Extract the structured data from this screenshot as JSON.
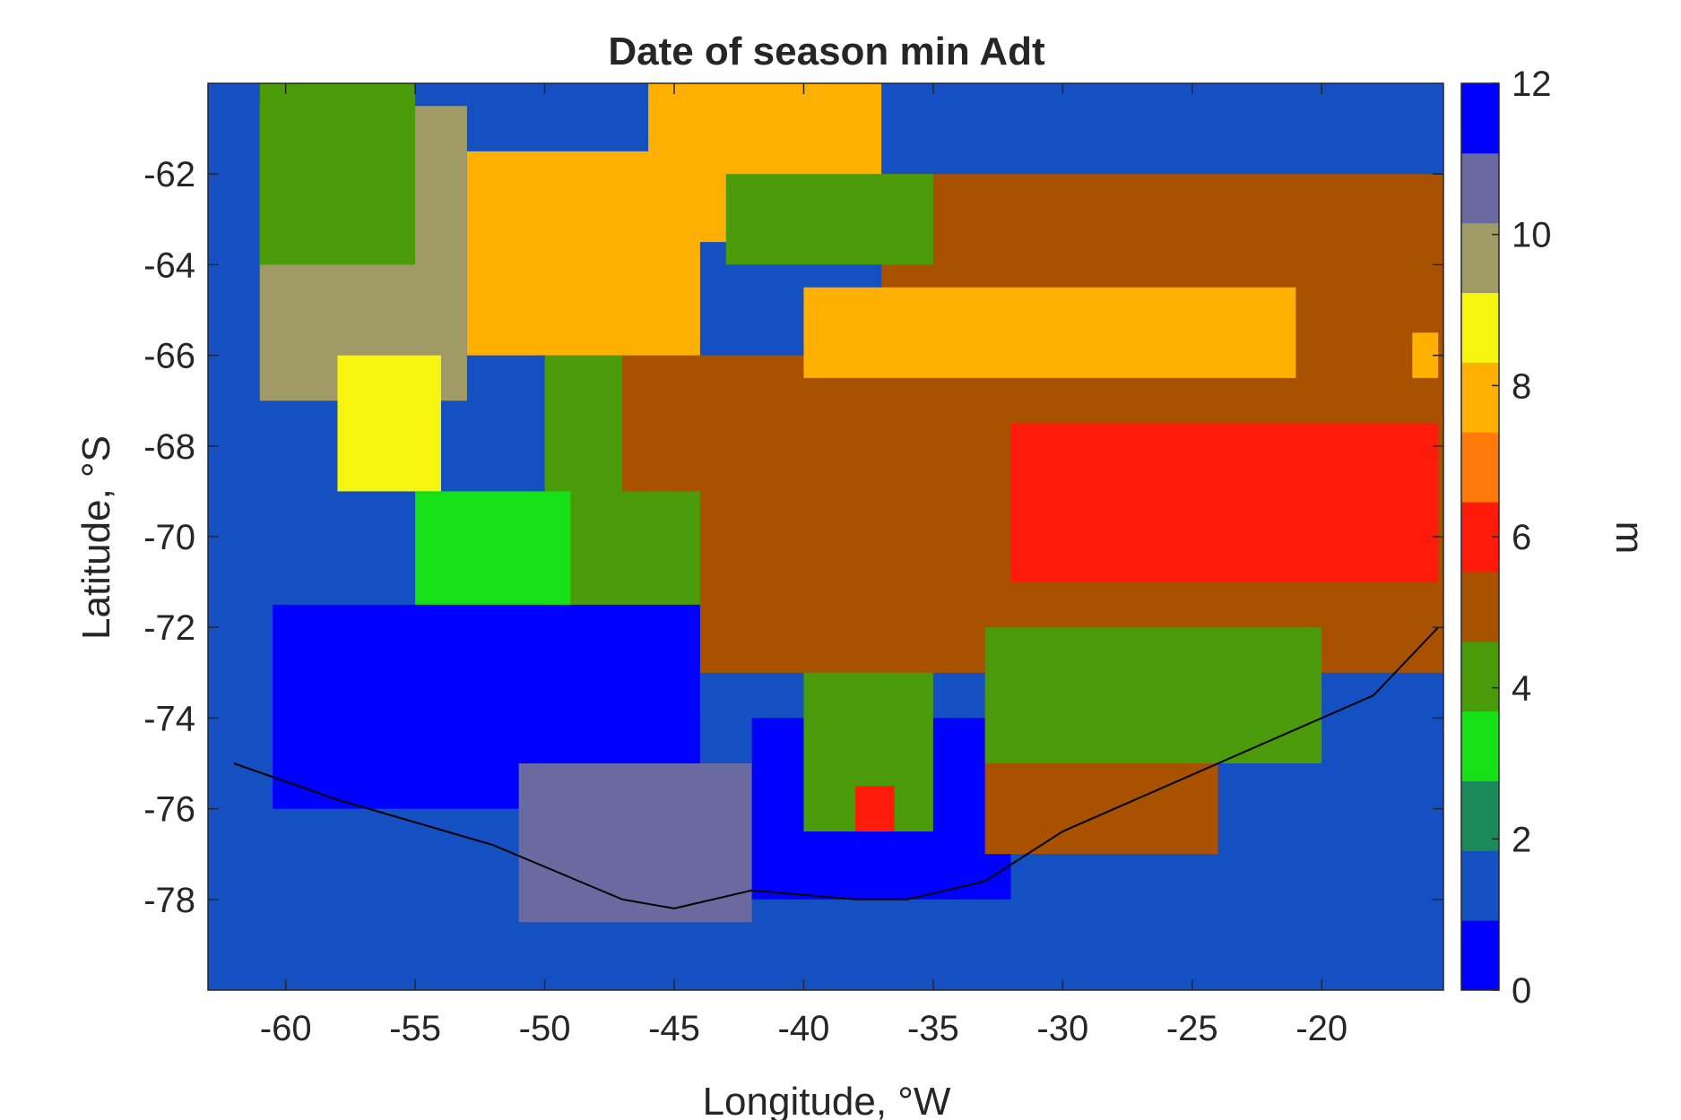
{
  "chart_data": {
    "type": "heatmap",
    "title": "Date of season min Adt",
    "xlabel": "Longitude, °W",
    "ylabel": "Latitude, °S",
    "xlim": [
      -63,
      -15.3
    ],
    "ylim": [
      -80,
      -60
    ],
    "x_ticks": [
      -60,
      -55,
      -50,
      -45,
      -40,
      -35,
      -30,
      -25,
      -20
    ],
    "y_ticks": [
      -62,
      -64,
      -66,
      -68,
      -70,
      -72,
      -74,
      -76,
      -78
    ],
    "x_tick_labels": [
      "-60",
      "-55",
      "-50",
      "-45",
      "-40",
      "-35",
      "-30",
      "-25",
      "-20"
    ],
    "y_tick_labels": [
      "-62",
      "-64",
      "-66",
      "-68",
      "-70",
      "-72",
      "-74",
      "-76",
      "-78"
    ],
    "grid": false,
    "colorbar": {
      "label": "m",
      "range": [
        0,
        12
      ],
      "ticks": [
        0,
        2,
        4,
        6,
        8,
        10,
        12
      ],
      "tick_labels": [
        "0",
        "2",
        "4",
        "6",
        "8",
        "10",
        "12"
      ],
      "colors": [
        "#0000ff",
        "#1550c2",
        "#1a8a5a",
        "#16e016",
        "#4a9a0a",
        "#a85200",
        "#ff1a0a",
        "#ff7a0a",
        "#ffb000",
        "#f5f510",
        "#a09a66",
        "#6a6aa0",
        "#0000ff"
      ]
    },
    "background_value": 1,
    "regions": [
      {
        "value": 5,
        "lon": [
          -37,
          -15.3
        ],
        "lat": [
          -73,
          -62
        ]
      },
      {
        "value": 4,
        "lon": [
          -50,
          -37
        ],
        "lat": [
          -73,
          -66
        ]
      },
      {
        "value": 5,
        "lon": [
          -47,
          -33
        ],
        "lat": [
          -73,
          -66
        ]
      },
      {
        "value": 8,
        "lon": [
          -53,
          -44
        ],
        "lat": [
          -66,
          -61.5
        ]
      },
      {
        "value": 8,
        "lon": [
          -40,
          -21
        ],
        "lat": [
          -66.5,
          -64.5
        ]
      },
      {
        "value": 8,
        "lon": [
          -46,
          -37
        ],
        "lat": [
          -63.5,
          -60
        ]
      },
      {
        "value": 4,
        "lon": [
          -43,
          -35
        ],
        "lat": [
          -64,
          -62
        ]
      },
      {
        "value": 10,
        "lon": [
          -61,
          -53
        ],
        "lat": [
          -67,
          -60.5
        ]
      },
      {
        "value": 9,
        "lon": [
          -58,
          -54
        ],
        "lat": [
          -69,
          -66
        ]
      },
      {
        "value": 4,
        "lon": [
          -61,
          -55
        ],
        "lat": [
          -64,
          -60
        ]
      },
      {
        "value": 3,
        "lon": [
          -55,
          -49
        ],
        "lat": [
          -71.5,
          -69
        ]
      },
      {
        "value": 4,
        "lon": [
          -49,
          -44
        ],
        "lat": [
          -74,
          -69
        ]
      },
      {
        "value": 6,
        "lon": [
          -32,
          -15.5
        ],
        "lat": [
          -71,
          -67.5
        ]
      },
      {
        "value": 0,
        "lon": [
          -60.5,
          -44
        ],
        "lat": [
          -76,
          -71.5
        ]
      },
      {
        "value": 11,
        "lon": [
          -51,
          -42
        ],
        "lat": [
          -78.5,
          -75
        ]
      },
      {
        "value": 0,
        "lon": [
          -42,
          -32
        ],
        "lat": [
          -78,
          -74
        ]
      },
      {
        "value": 4,
        "lon": [
          -40,
          -35
        ],
        "lat": [
          -76.5,
          -73
        ]
      },
      {
        "value": 5,
        "lon": [
          -33,
          -24
        ],
        "lat": [
          -77,
          -73.5
        ]
      },
      {
        "value": 4,
        "lon": [
          -33,
          -20
        ],
        "lat": [
          -75,
          -72
        ]
      },
      {
        "value": 6,
        "lon": [
          -38,
          -36.5
        ],
        "lat": [
          -76.5,
          -75.5
        ]
      },
      {
        "value": 8,
        "lon": [
          -16.5,
          -15.5
        ],
        "lat": [
          -66.5,
          -65.5
        ]
      }
    ]
  }
}
